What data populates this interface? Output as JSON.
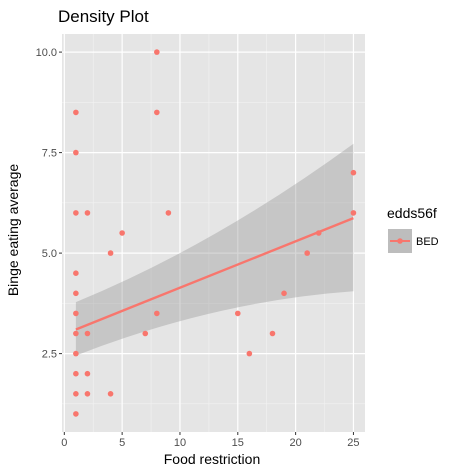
{
  "chart_data": {
    "type": "scatter",
    "title": "Density Plot",
    "xlabel": "Food restriction",
    "ylabel": "Binge eating average",
    "xlim": [
      -0.2,
      26.0
    ],
    "ylim": [
      0.55,
      10.45
    ],
    "x_ticks": [
      0,
      5,
      10,
      15,
      20,
      25
    ],
    "x_tick_labels": [
      "0",
      "5",
      "10",
      "15",
      "20",
      "25"
    ],
    "y_ticks": [
      2.5,
      5.0,
      7.5,
      10.0
    ],
    "y_tick_labels": [
      "2.5",
      "5.0",
      "7.5",
      "10.0"
    ],
    "grid": true,
    "background": "#e5e5e5",
    "legend": {
      "title": "edds56f",
      "placement": "right",
      "entries": [
        "BED"
      ]
    },
    "series": [
      {
        "name": "BED",
        "color": "#f8766d",
        "points": [
          [
            1,
            8.5
          ],
          [
            1,
            7.5
          ],
          [
            1,
            6.0
          ],
          [
            1,
            4.5
          ],
          [
            1,
            4.0
          ],
          [
            1,
            3.5
          ],
          [
            1,
            3.0
          ],
          [
            1,
            2.5
          ],
          [
            1,
            2.0
          ],
          [
            1,
            1.5
          ],
          [
            1,
            1.0
          ],
          [
            2,
            6.0
          ],
          [
            2,
            3.0
          ],
          [
            2,
            2.0
          ],
          [
            2,
            1.5
          ],
          [
            4,
            5.0
          ],
          [
            4,
            1.5
          ],
          [
            5,
            5.5
          ],
          [
            7,
            3.0
          ],
          [
            8,
            10.0
          ],
          [
            8,
            8.5
          ],
          [
            8,
            3.5
          ],
          [
            9,
            6.0
          ],
          [
            15,
            3.5
          ],
          [
            16,
            2.5
          ],
          [
            18,
            3.0
          ],
          [
            19,
            4.0
          ],
          [
            21,
            5.0
          ],
          [
            22,
            5.5
          ],
          [
            25,
            7.0
          ],
          [
            25,
            6.0
          ]
        ],
        "fit": {
          "method": "linear",
          "color": "#f8766d",
          "band_color": "#999999",
          "x": [
            1,
            25
          ],
          "y": [
            3.1,
            5.87
          ],
          "ci_lower": [
            2.45,
            4.05
          ],
          "ci_upper": [
            3.78,
            7.72
          ]
        }
      }
    ]
  }
}
